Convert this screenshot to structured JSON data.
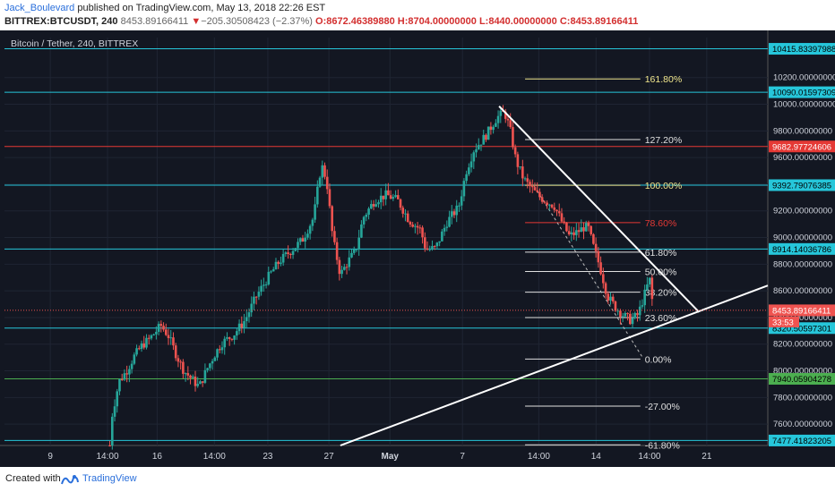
{
  "header": {
    "author": "Jack_Boulevard",
    "published_text": "published on TradingView.com, May 13, 2018 22:26 EST",
    "symbol": "BITTREX:BTCUSDT, 240",
    "last": "8453.89166411",
    "change_arrow": "▼",
    "change": "−205.30508423 (−2.37%)",
    "open": "O:8672.46389880",
    "high": "H:8704.00000000",
    "low": "L:8440.00000000",
    "close": "C:8453.89166411"
  },
  "footer": {
    "created_with": "Created with",
    "brand": "TradingView"
  },
  "chart_data": {
    "type": "candlestick",
    "title": "Bitcoin / Tether, 240, BITTREX",
    "ylim": [
      7440,
      10500
    ],
    "y_ticks": [
      "10200.00000000",
      "10000.00000000",
      "9800.00000000",
      "9600.00000000",
      "9400.00000000",
      "9200.00000000",
      "9000.00000000",
      "8800.00000000",
      "8600.00000000",
      "8400.00000000",
      "8200.00000000",
      "8000.00000000",
      "7800.00000000",
      "7600.00000000"
    ],
    "y_tick_values": [
      10200,
      10000,
      9800,
      9600,
      9400,
      9200,
      9000,
      8800,
      8600,
      8400,
      8200,
      8000,
      7800,
      7600
    ],
    "x_ticks": [
      "9",
      "14:00",
      "16",
      "14:00",
      "23",
      "27",
      "May",
      "7",
      "14:00",
      "14",
      "14:00",
      "21"
    ],
    "x_tick_pos": [
      0.06,
      0.135,
      0.2,
      0.275,
      0.345,
      0.425,
      0.505,
      0.6,
      0.7,
      0.775,
      0.845,
      0.92
    ],
    "horizontal_levels": [
      {
        "price": 10415.83397988,
        "label": "10415.83397988",
        "color": "#26c6da"
      },
      {
        "price": 10090.01597309,
        "label": "10090.01597309",
        "color": "#26c6da"
      },
      {
        "price": 9682.97724606,
        "label": "9682.97724606",
        "color": "#e53935"
      },
      {
        "price": 9392.79076385,
        "label": "9392.79076385",
        "color": "#26c6da"
      },
      {
        "price": 8914.14036786,
        "label": "8914.14036786",
        "color": "#26c6da"
      },
      {
        "price": 8320.50597301,
        "label": "8320.50597301",
        "color": "#26c6da"
      },
      {
        "price": 7940.05904278,
        "label": "7940.05904278",
        "color": "#4caf50"
      },
      {
        "price": 7477.41823205,
        "label": "7477.41823205",
        "color": "#26c6da"
      }
    ],
    "current_price": {
      "price": 8453.89166411,
      "label": "8453.89166411",
      "countdown": "33:53",
      "color": "#ef5350"
    },
    "fib_levels": [
      {
        "label": "161.80%",
        "price": 10190,
        "color": "#f0e68c"
      },
      {
        "label": "127.20%",
        "price": 9735,
        "color": "#e0e0e0"
      },
      {
        "label": "100.00%",
        "price": 9392,
        "color": "#f0e68c"
      },
      {
        "label": "78.60%",
        "price": 9112,
        "color": "#e53935"
      },
      {
        "label": "61.80%",
        "price": 8890,
        "color": "#e0e0e0"
      },
      {
        "label": "50.00%",
        "price": 8745,
        "color": "#e0e0e0"
      },
      {
        "label": "38.20%",
        "price": 8590,
        "color": "#e0e0e0"
      },
      {
        "label": "23.60%",
        "price": 8400,
        "color": "#e0e0e0"
      },
      {
        "label": "0.00%",
        "price": 8088,
        "color": "#e0e0e0"
      },
      {
        "label": "-27.00%",
        "price": 7735,
        "color": "#e0e0e0"
      },
      {
        "label": "-61.80%",
        "price": 7445,
        "color": "#e0e0e0"
      }
    ],
    "trendlines": [
      {
        "x1": 0.44,
        "y1": 7440,
        "x2": 1.0,
        "y2": 8640
      },
      {
        "x1": 0.648,
        "y1": 9985,
        "x2": 0.91,
        "y2": 8440
      }
    ],
    "candle_path": [
      [
        0.138,
        7440
      ],
      [
        0.14,
        7640
      ],
      [
        0.15,
        7920
      ],
      [
        0.16,
        8000
      ],
      [
        0.17,
        8110
      ],
      [
        0.18,
        8190
      ],
      [
        0.19,
        8240
      ],
      [
        0.205,
        8340
      ],
      [
        0.215,
        8260
      ],
      [
        0.225,
        8120
      ],
      [
        0.235,
        8000
      ],
      [
        0.245,
        7940
      ],
      [
        0.255,
        7880
      ],
      [
        0.265,
        8010
      ],
      [
        0.275,
        8120
      ],
      [
        0.285,
        8210
      ],
      [
        0.3,
        8270
      ],
      [
        0.315,
        8380
      ],
      [
        0.33,
        8560
      ],
      [
        0.345,
        8700
      ],
      [
        0.36,
        8820
      ],
      [
        0.375,
        8900
      ],
      [
        0.39,
        8980
      ],
      [
        0.405,
        9150
      ],
      [
        0.415,
        9550
      ],
      [
        0.422,
        9430
      ],
      [
        0.43,
        9000
      ],
      [
        0.44,
        8720
      ],
      [
        0.45,
        8820
      ],
      [
        0.46,
        8900
      ],
      [
        0.47,
        9150
      ],
      [
        0.485,
        9280
      ],
      [
        0.5,
        9320
      ],
      [
        0.515,
        9280
      ],
      [
        0.53,
        9130
      ],
      [
        0.545,
        9060
      ],
      [
        0.552,
        8910
      ],
      [
        0.565,
        8920
      ],
      [
        0.58,
        9120
      ],
      [
        0.595,
        9230
      ],
      [
        0.605,
        9500
      ],
      [
        0.615,
        9660
      ],
      [
        0.63,
        9760
      ],
      [
        0.645,
        9900
      ],
      [
        0.655,
        9940
      ],
      [
        0.662,
        9820
      ],
      [
        0.67,
        9580
      ],
      [
        0.68,
        9440
      ],
      [
        0.69,
        9370
      ],
      [
        0.7,
        9310
      ],
      [
        0.71,
        9270
      ],
      [
        0.72,
        9240
      ],
      [
        0.73,
        9120
      ],
      [
        0.74,
        9010
      ],
      [
        0.75,
        9040
      ],
      [
        0.76,
        9080
      ],
      [
        0.765,
        9070
      ],
      [
        0.77,
        8960
      ],
      [
        0.78,
        8780
      ],
      [
        0.79,
        8560
      ],
      [
        0.8,
        8480
      ],
      [
        0.81,
        8420
      ],
      [
        0.82,
        8380
      ],
      [
        0.83,
        8420
      ],
      [
        0.84,
        8600
      ],
      [
        0.845,
        8690
      ],
      [
        0.85,
        8460
      ]
    ]
  }
}
